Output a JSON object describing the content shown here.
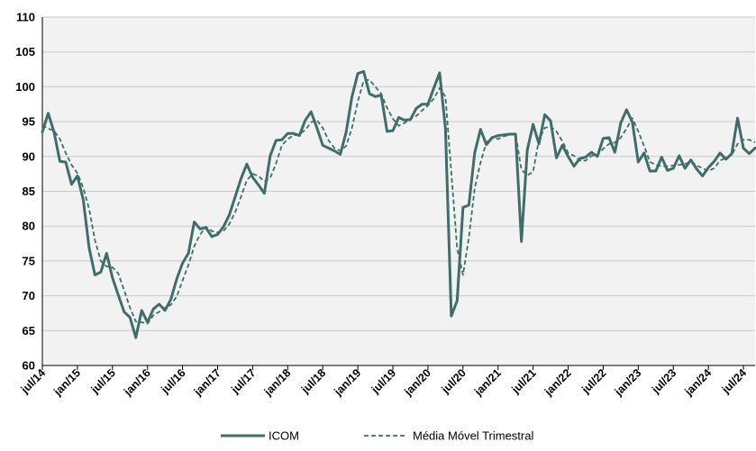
{
  "colors": {
    "series_line": "#3f6e6a",
    "plot_bg": "#f2f2f2",
    "grid": "#c8c8c8",
    "axis": "#000000"
  },
  "chart_data": {
    "type": "line",
    "title": "",
    "xlabel": "",
    "ylabel": "",
    "ylim": [
      60,
      110
    ],
    "yticks": [
      60,
      65,
      70,
      75,
      80,
      85,
      90,
      95,
      100,
      105,
      110
    ],
    "grid": "horizontal",
    "legend_position": "bottom",
    "x_start": "jul/14",
    "x_frequency": "monthly",
    "x_tick_labels": [
      "jul/14",
      "jan/15",
      "jul/15",
      "jan/16",
      "jul/16",
      "jan/17",
      "jul/17",
      "jan/18",
      "jul/18",
      "jan/19",
      "jul/19",
      "jan/20",
      "jul/20",
      "jan/21",
      "jul/21",
      "jan/22",
      "jul/22",
      "jan/23",
      "jul/23",
      "jan/24",
      "jul/24"
    ],
    "series": [
      {
        "name": "ICOM",
        "style": "solid",
        "values": [
          93.5,
          96.2,
          93.5,
          89.3,
          89.2,
          86.0,
          87.2,
          83.8,
          76.9,
          73.0,
          73.4,
          76.1,
          72.6,
          70.1,
          67.7,
          66.9,
          64.0,
          67.9,
          66.2,
          68.1,
          68.8,
          67.9,
          69.5,
          72.4,
          74.7,
          76.1,
          80.6,
          79.6,
          79.8,
          78.5,
          78.8,
          79.9,
          81.6,
          84.2,
          86.8,
          88.9,
          87.0,
          85.9,
          84.7,
          90.1,
          92.3,
          92.4,
          93.3,
          93.3,
          93.0,
          95.2,
          96.4,
          94.1,
          91.6,
          91.2,
          90.8,
          90.3,
          93.5,
          98.6,
          101.9,
          102.2,
          99.0,
          98.6,
          98.8,
          93.6,
          93.7,
          95.6,
          95.2,
          95.3,
          96.9,
          97.5,
          97.5,
          99.8,
          102.0,
          94.0,
          67.1,
          69.3,
          82.7,
          83.0,
          90.5,
          93.9,
          91.7,
          92.7,
          93.0,
          93.1,
          93.2,
          93.2,
          77.8,
          90.9,
          94.6,
          91.8,
          96.0,
          95.1,
          89.8,
          91.6,
          90.0,
          88.6,
          89.7,
          89.9,
          90.6,
          90.0,
          92.6,
          92.7,
          90.6,
          94.8,
          96.7,
          94.9,
          89.2,
          90.5,
          87.9,
          87.9,
          89.9,
          88.0,
          88.3,
          90.1,
          88.3,
          89.5,
          88.2,
          87.2,
          88.4,
          89.3,
          90.5,
          89.6,
          90.4,
          95.5,
          91.2,
          90.4,
          91.2
        ]
      },
      {
        "name": "Média Móvel Trimestral",
        "style": "dashed",
        "values": [
          94.5,
          94.0,
          93.7,
          92.5,
          90.5,
          88.8,
          87.6,
          85.5,
          82.5,
          78.0,
          75.0,
          74.2,
          74.1,
          73.2,
          70.8,
          68.3,
          66.3,
          66.2,
          66.0,
          67.2,
          67.7,
          68.3,
          68.7,
          69.9,
          72.2,
          74.4,
          77.1,
          78.8,
          79.9,
          79.3,
          79.1,
          79.3,
          80.3,
          82.0,
          84.2,
          86.6,
          87.5,
          87.2,
          86.4,
          86.9,
          89.0,
          91.6,
          92.5,
          93.0,
          93.2,
          93.8,
          94.9,
          95.2,
          94.1,
          92.3,
          91.2,
          90.8,
          91.5,
          94.1,
          97.9,
          100.9,
          101.0,
          100.0,
          99.0,
          97.0,
          95.4,
          94.4,
          94.8,
          95.4,
          95.8,
          96.6,
          97.3,
          98.3,
          99.8,
          98.6,
          87.7,
          76.8,
          73.0,
          78.3,
          85.4,
          89.1,
          92.0,
          92.8,
          92.5,
          92.9,
          93.1,
          93.2,
          88.1,
          87.3,
          87.8,
          92.4,
          94.1,
          94.3,
          93.6,
          92.2,
          90.5,
          90.1,
          89.4,
          89.4,
          90.1,
          90.2,
          91.1,
          91.8,
          92.0,
          92.7,
          94.0,
          95.5,
          93.6,
          91.5,
          89.2,
          88.8,
          88.6,
          88.6,
          88.7,
          88.8,
          88.9,
          89.3,
          88.7,
          88.3,
          87.9,
          88.3,
          89.4,
          89.8,
          90.2,
          91.8,
          92.4,
          92.4,
          92.0
        ]
      }
    ]
  }
}
